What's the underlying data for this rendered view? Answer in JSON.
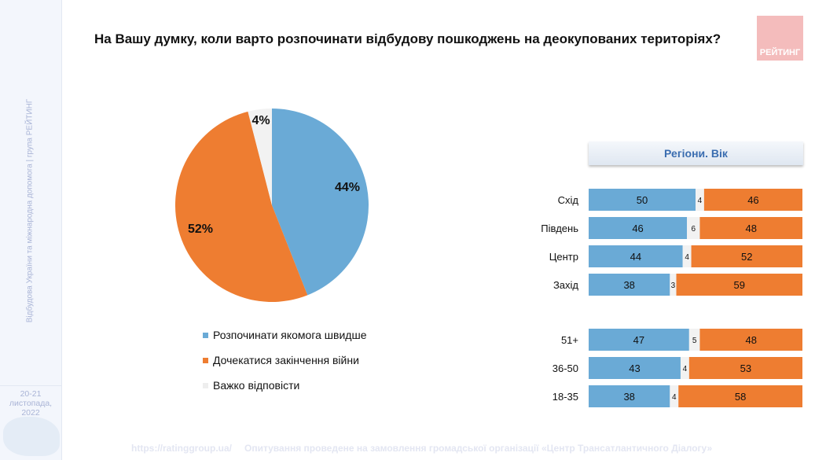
{
  "sidebar": {
    "vertical_text": "Відбудова України та міжнародна допомога | група РЕЙТИНГ",
    "date": "20-21 листопада, 2022"
  },
  "title": "На Вашу думку, коли варто розпочинати відбудову пошкоджень на деокупованих територіях?",
  "logo": "РЕЙТИНГ",
  "footer": {
    "url": "https://ratinggroup.ua/",
    "note": "Опитування проведене на замовлення громадської організації «Центр Трансатлантичного Діалогу»"
  },
  "colors": {
    "blue": "#6aaad6",
    "orange": "#ee7d31",
    "gray": "#f2f2f2"
  },
  "chart_data": [
    {
      "type": "pie",
      "categories": [
        "Розпочинати якомога швидше",
        "Дочекатися закінчення війни",
        "Важко відповісти"
      ],
      "values": [
        44,
        52,
        4
      ],
      "labels": [
        "44%",
        "52%",
        "4%"
      ]
    },
    {
      "type": "bar",
      "stacked": true,
      "orientation": "horizontal",
      "title": "Регіони. Вік",
      "categories": [
        "Схід",
        "Південь",
        "Центр",
        "Захід",
        "51+",
        "36-50",
        "18-35"
      ],
      "series": [
        {
          "name": "Розпочинати якомога швидше",
          "values": [
            50,
            46,
            44,
            38,
            47,
            43,
            38
          ]
        },
        {
          "name": "Важко відповісти",
          "values": [
            4,
            6,
            4,
            3,
            5,
            4,
            4
          ]
        },
        {
          "name": "Дочекатися закінчення війни",
          "values": [
            46,
            48,
            52,
            59,
            48,
            53,
            58
          ]
        }
      ],
      "xlim": [
        0,
        100
      ]
    }
  ]
}
